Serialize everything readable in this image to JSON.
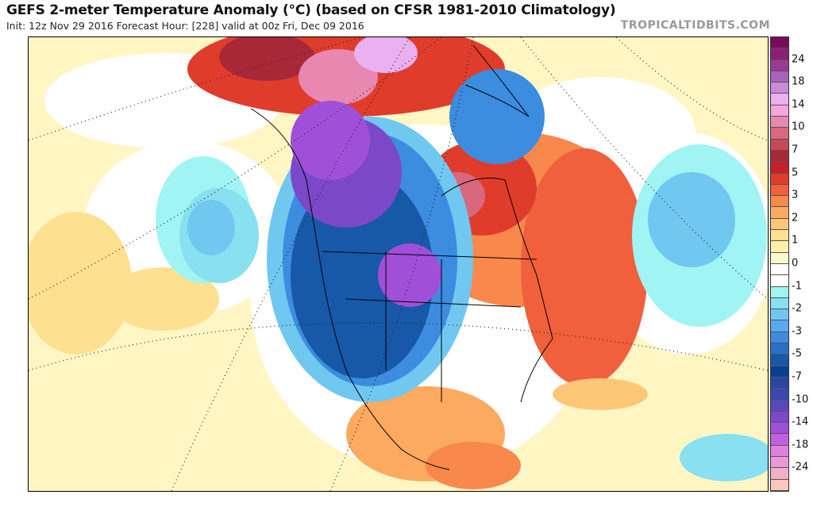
{
  "header": {
    "title": "GEFS 2-meter Temperature Anomaly (°C) (based on CFSR 1981-2010 Climatology)",
    "subtitle": "Init: 12z Nov 29 2016   Forecast Hour: [228]   valid at 00z Fri, Dec 09 2016",
    "brand": "TROPICALTIDBITS.COM"
  },
  "colorbar": {
    "labels": [
      "24",
      "18",
      "14",
      "10",
      "7",
      "5",
      "3",
      "2",
      "1",
      "0",
      "-1",
      "-2",
      "-3",
      "-5",
      "-7",
      "-10",
      "-14",
      "-18",
      "-24"
    ],
    "colors": [
      "#7a0a5a",
      "#8c1f74",
      "#9a3a92",
      "#a862b8",
      "#c98ad8",
      "#eab0f0",
      "#f6a6dc",
      "#e888b0",
      "#d8687e",
      "#c84858",
      "#a82838",
      "#c82028",
      "#e03c2c",
      "#f0603c",
      "#f8884c",
      "#fcaa60",
      "#fcc878",
      "#fde090",
      "#fff0a8",
      "#fffacd",
      "#ffffff",
      "#ffffff",
      "#a0f4f4",
      "#88e0f0",
      "#70c8f0",
      "#58aaf0",
      "#3c8ce0",
      "#2870c8",
      "#1858a8",
      "#084090",
      "#2848a0",
      "#3c48b0",
      "#5a48c0",
      "#7a48c8",
      "#a050d8",
      "#c060e0",
      "#e080e0",
      "#e89ad8",
      "#f0b0c8",
      "#f8c8b8"
    ]
  }
}
